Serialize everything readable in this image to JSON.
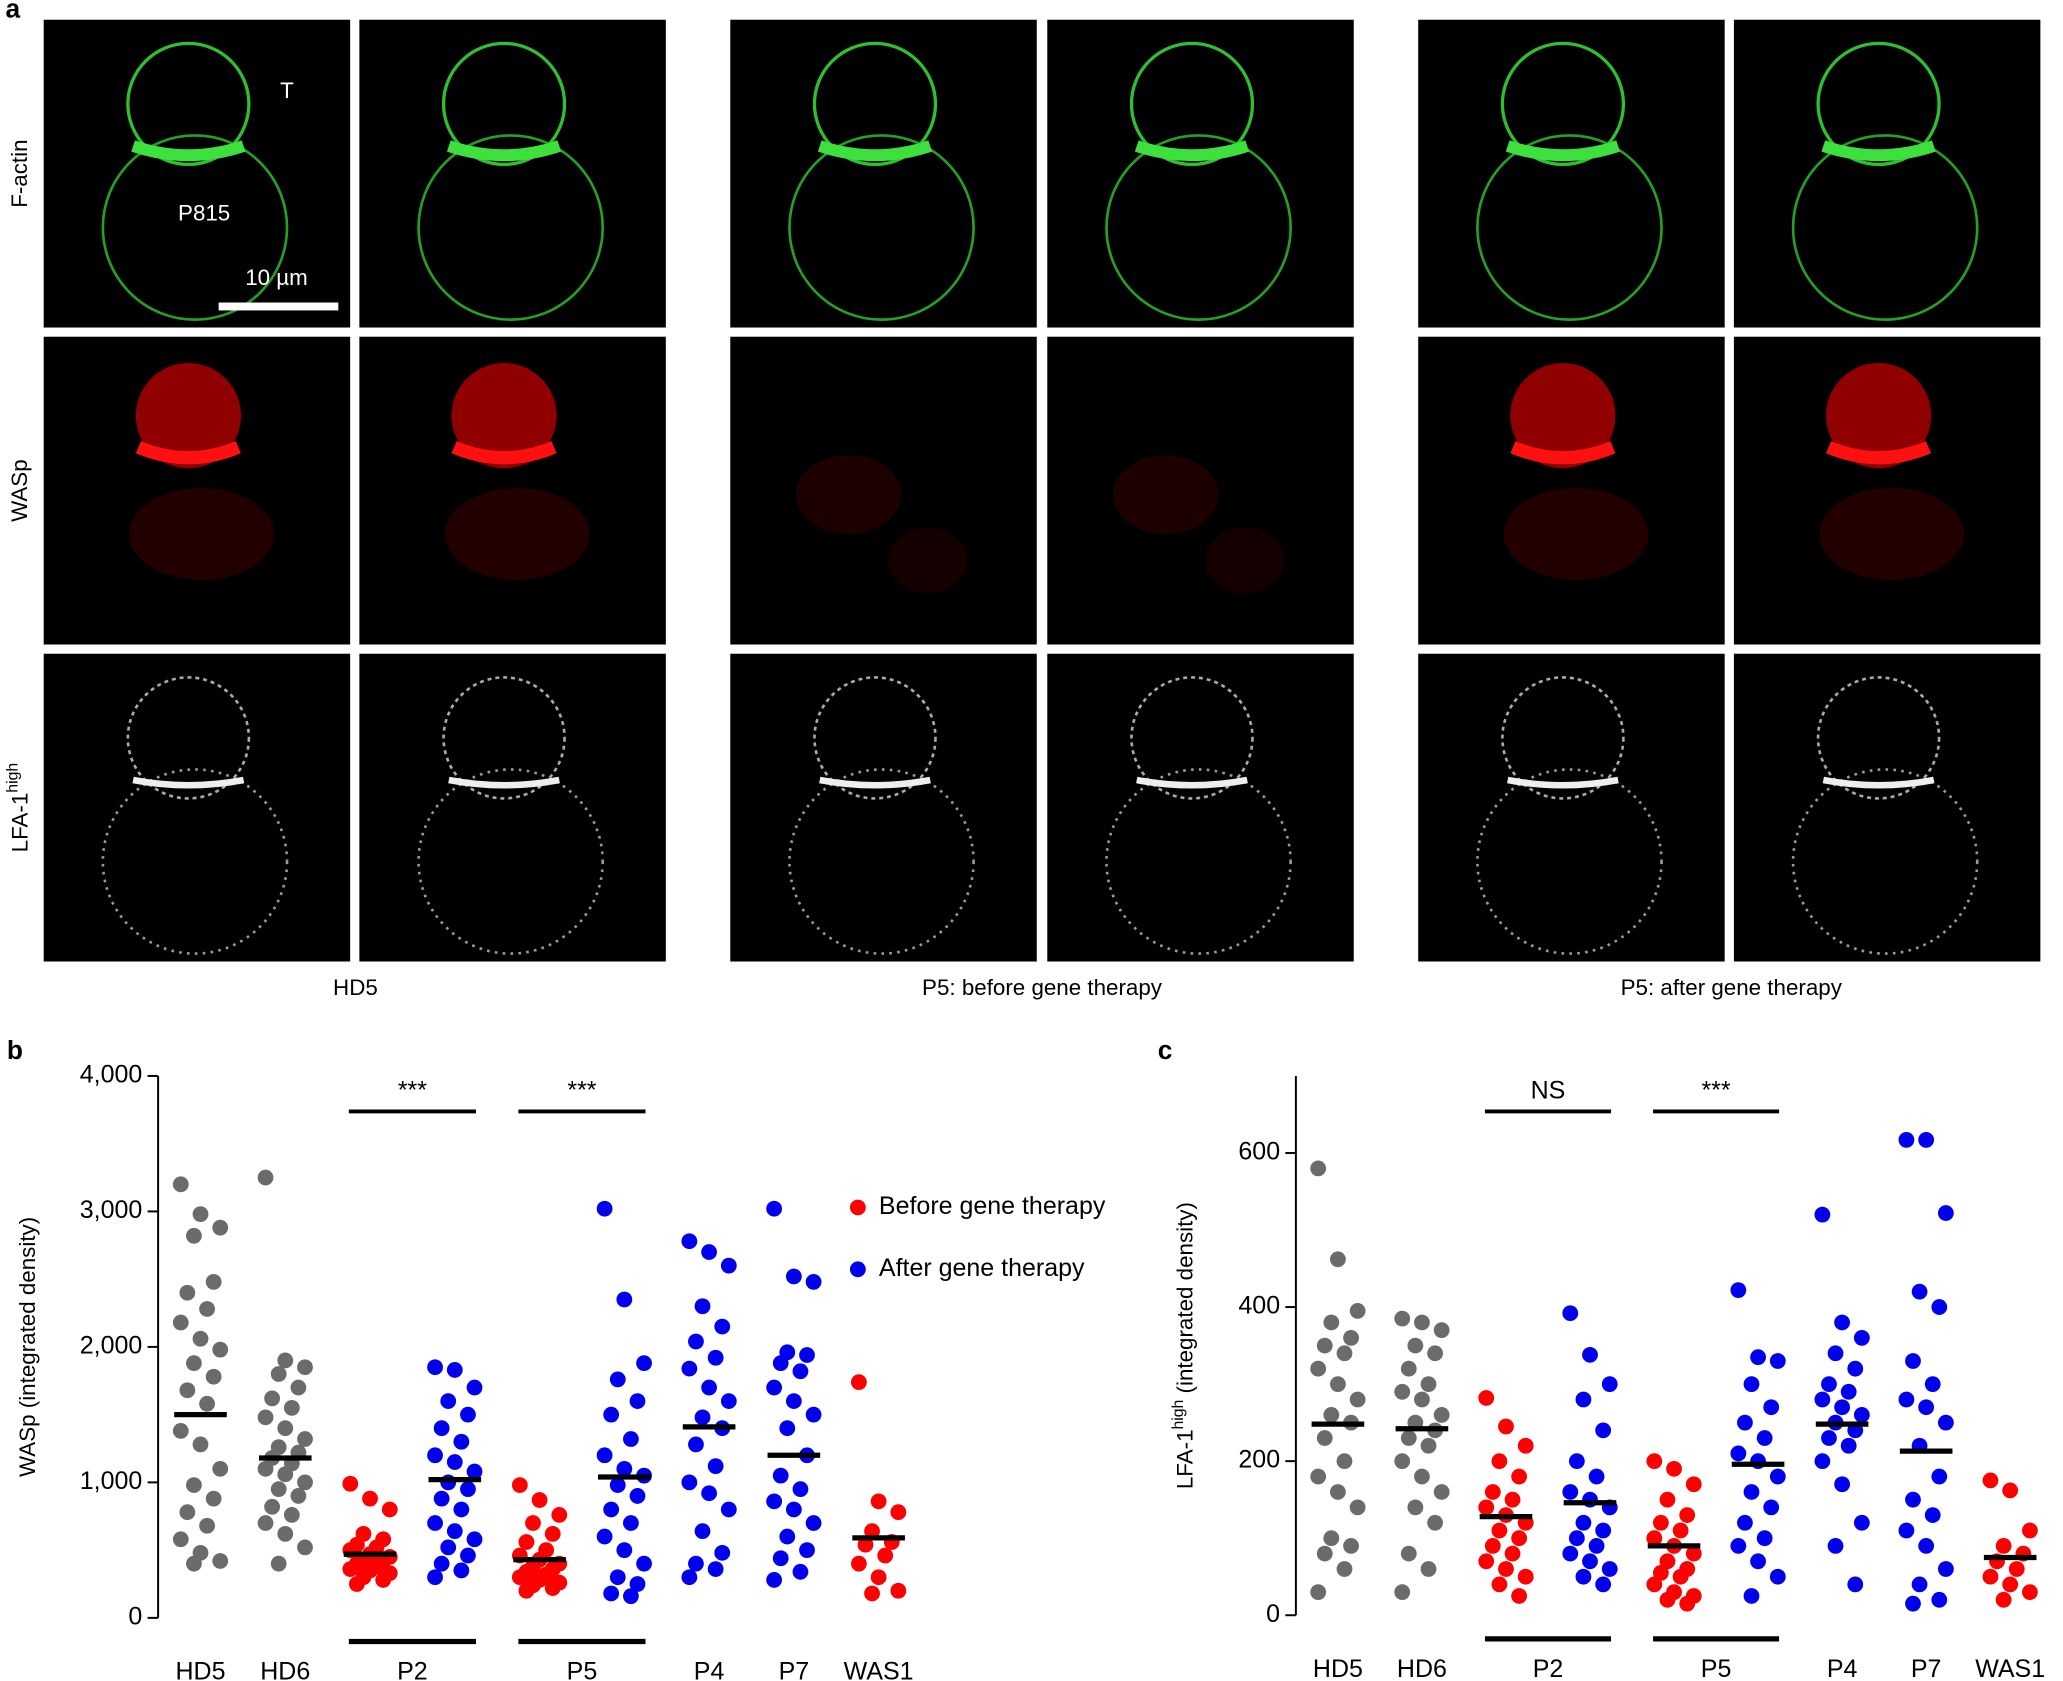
{
  "panel_a": {
    "label": "a",
    "row_labels": [
      "F-actin",
      "WASp",
      "LFA-1"
    ],
    "row_label_superscript": "high",
    "captions": [
      "HD5",
      "P5: before gene therapy",
      "P5: after gene therapy"
    ],
    "cell_labels": {
      "t_cell": "T",
      "target": "P815"
    },
    "scale_bar": "10 µm"
  },
  "chart_data": [
    {
      "type": "scatter",
      "label": "b",
      "ylabel": "WASp (integrated density)",
      "categories": [
        "HD5",
        "HD6",
        "P2",
        "P5",
        "P4",
        "P7",
        "WAS1"
      ],
      "ylim": [
        0,
        4000
      ],
      "yticks": [
        0,
        {
          "value": 1000,
          "label": "1,000"
        },
        {
          "value": 2000,
          "label": "2,000"
        },
        {
          "value": 3000,
          "label": "3,000"
        },
        {
          "value": 4000,
          "label": "4,000"
        }
      ],
      "significance": [
        null,
        null,
        "***",
        "***",
        null,
        null,
        null
      ],
      "legend": "upper right",
      "series": [
        {
          "color": "#6b6b6b",
          "values": [
            [
              3200,
              2980,
              2880,
              2820,
              2480,
              2400,
              2280,
              2180,
              2060,
              1980,
              1880,
              1780,
              1680,
              1580,
              1380,
              1280,
              1100,
              980,
              880,
              780,
              680,
              580,
              480,
              420,
              400
            ],
            [
              3250,
              1900,
              1850,
              1800,
              1700,
              1620,
              1550,
              1480,
              1400,
              1320,
              1260,
              1220,
              1180,
              1140,
              1100,
              1060,
              1000,
              950,
              900,
              820,
              760,
              700,
              620,
              520,
              400
            ],
            null,
            null,
            null,
            null,
            null
          ],
          "means": [
            1500,
            1180,
            null,
            null,
            null,
            null,
            null
          ]
        },
        {
          "name": "Before gene therapy",
          "color": "#ff0000",
          "values": [
            null,
            null,
            [
              990,
              880,
              800,
              620,
              580,
              540,
              520,
              500,
              470,
              450,
              430,
              420,
              400,
              380,
              360,
              350,
              330,
              300,
              280,
              250
            ],
            [
              980,
              870,
              760,
              700,
              620,
              560,
              500,
              460,
              430,
              400,
              380,
              360,
              340,
              320,
              300,
              280,
              260,
              240,
              220,
              200
            ],
            null,
            null,
            [
              1740,
              860,
              780,
              640,
              560,
              540,
              460,
              400,
              300,
              200,
              180
            ]
          ],
          "means": [
            null,
            null,
            470,
            430,
            null,
            null,
            590
          ]
        },
        {
          "name": "After gene therapy",
          "color": "#0000ee",
          "values": [
            null,
            null,
            [
              1850,
              1830,
              1700,
              1600,
              1500,
              1400,
              1300,
              1200,
              1150,
              1080,
              1000,
              950,
              880,
              800,
              700,
              640,
              580,
              520,
              460,
              400,
              350,
              300
            ],
            [
              3020,
              2350,
              1880,
              1760,
              1600,
              1500,
              1320,
              1200,
              1100,
              1050,
              980,
              900,
              800,
              700,
              600,
              500,
              400,
              300,
              250,
              180,
              160
            ],
            [
              2780,
              2700,
              2600,
              2300,
              2150,
              2040,
              1920,
              1840,
              1700,
              1600,
              1480,
              1400,
              1280,
              1120,
              1000,
              920,
              800,
              640,
              480,
              400,
              360,
              300
            ],
            [
              3020,
              2520,
              2480,
              1960,
              1940,
              1880,
              1820,
              1700,
              1600,
              1500,
              1400,
              1200,
              1050,
              950,
              860,
              800,
              700,
              600,
              500,
              440,
              340,
              280
            ],
            null
          ],
          "means": [
            null,
            null,
            1020,
            1040,
            1410,
            1200,
            null
          ]
        }
      ]
    },
    {
      "type": "scatter",
      "label": "c",
      "ylabel": "LFA-1",
      "ylabel_superscript": "high",
      "ylabel_suffix": " (integrated density)",
      "categories": [
        "HD5",
        "HD6",
        "P2",
        "P5",
        "P4",
        "P7",
        "WAS1"
      ],
      "ylim": [
        0,
        700
      ],
      "yticks": [
        0,
        200,
        400,
        600
      ],
      "significance": [
        null,
        null,
        "NS",
        "***",
        null,
        null,
        null
      ],
      "series": [
        {
          "color": "#6b6b6b",
          "values": [
            [
              580,
              462,
              395,
              380,
              360,
              350,
              340,
              320,
              300,
              280,
              260,
              250,
              230,
              200,
              180,
              160,
              140,
              100,
              90,
              80,
              60,
              30
            ],
            [
              385,
              380,
              370,
              350,
              340,
              320,
              300,
              290,
              280,
              260,
              250,
              240,
              230,
              220,
              200,
              180,
              160,
              140,
              120,
              80,
              60,
              30
            ],
            null,
            null,
            null,
            null,
            null
          ],
          "means": [
            248,
            242,
            null,
            null,
            null,
            null,
            null
          ]
        },
        {
          "name": "Before gene therapy",
          "color": "#ff0000",
          "values": [
            null,
            null,
            [
              282,
              245,
              220,
              200,
              180,
              160,
              150,
              140,
              130,
              120,
              110,
              100,
              90,
              80,
              70,
              60,
              50,
              40,
              25
            ],
            [
              200,
              190,
              170,
              150,
              130,
              120,
              110,
              100,
              90,
              80,
              70,
              60,
              55,
              50,
              40,
              30,
              25,
              20,
              15
            ],
            null,
            null,
            [
              175,
              162,
              110,
              90,
              80,
              70,
              60,
              50,
              40,
              30,
              20
            ]
          ],
          "means": [
            null,
            null,
            128,
            90,
            null,
            null,
            75
          ]
        },
        {
          "name": "After gene therapy",
          "color": "#0000ee",
          "values": [
            null,
            null,
            [
              392,
              338,
              300,
              280,
              240,
              200,
              180,
              160,
              150,
              140,
              120,
              110,
              100,
              90,
              80,
              70,
              60,
              50,
              40
            ],
            [
              422,
              335,
              330,
              300,
              270,
              250,
              230,
              210,
              200,
              180,
              160,
              140,
              120,
              100,
              90,
              70,
              50,
              25
            ],
            [
              520,
              380,
              360,
              340,
              320,
              300,
              290,
              280,
              270,
              260,
              250,
              240,
              230,
              220,
              200,
              170,
              120,
              90,
              40
            ],
            [
              617,
              617,
              522,
              420,
              400,
              330,
              300,
              280,
              270,
              250,
              220,
              180,
              150,
              130,
              110,
              90,
              60,
              40,
              20,
              15
            ],
            null
          ],
          "means": [
            null,
            null,
            146,
            196,
            248,
            213,
            null
          ]
        }
      ]
    }
  ]
}
